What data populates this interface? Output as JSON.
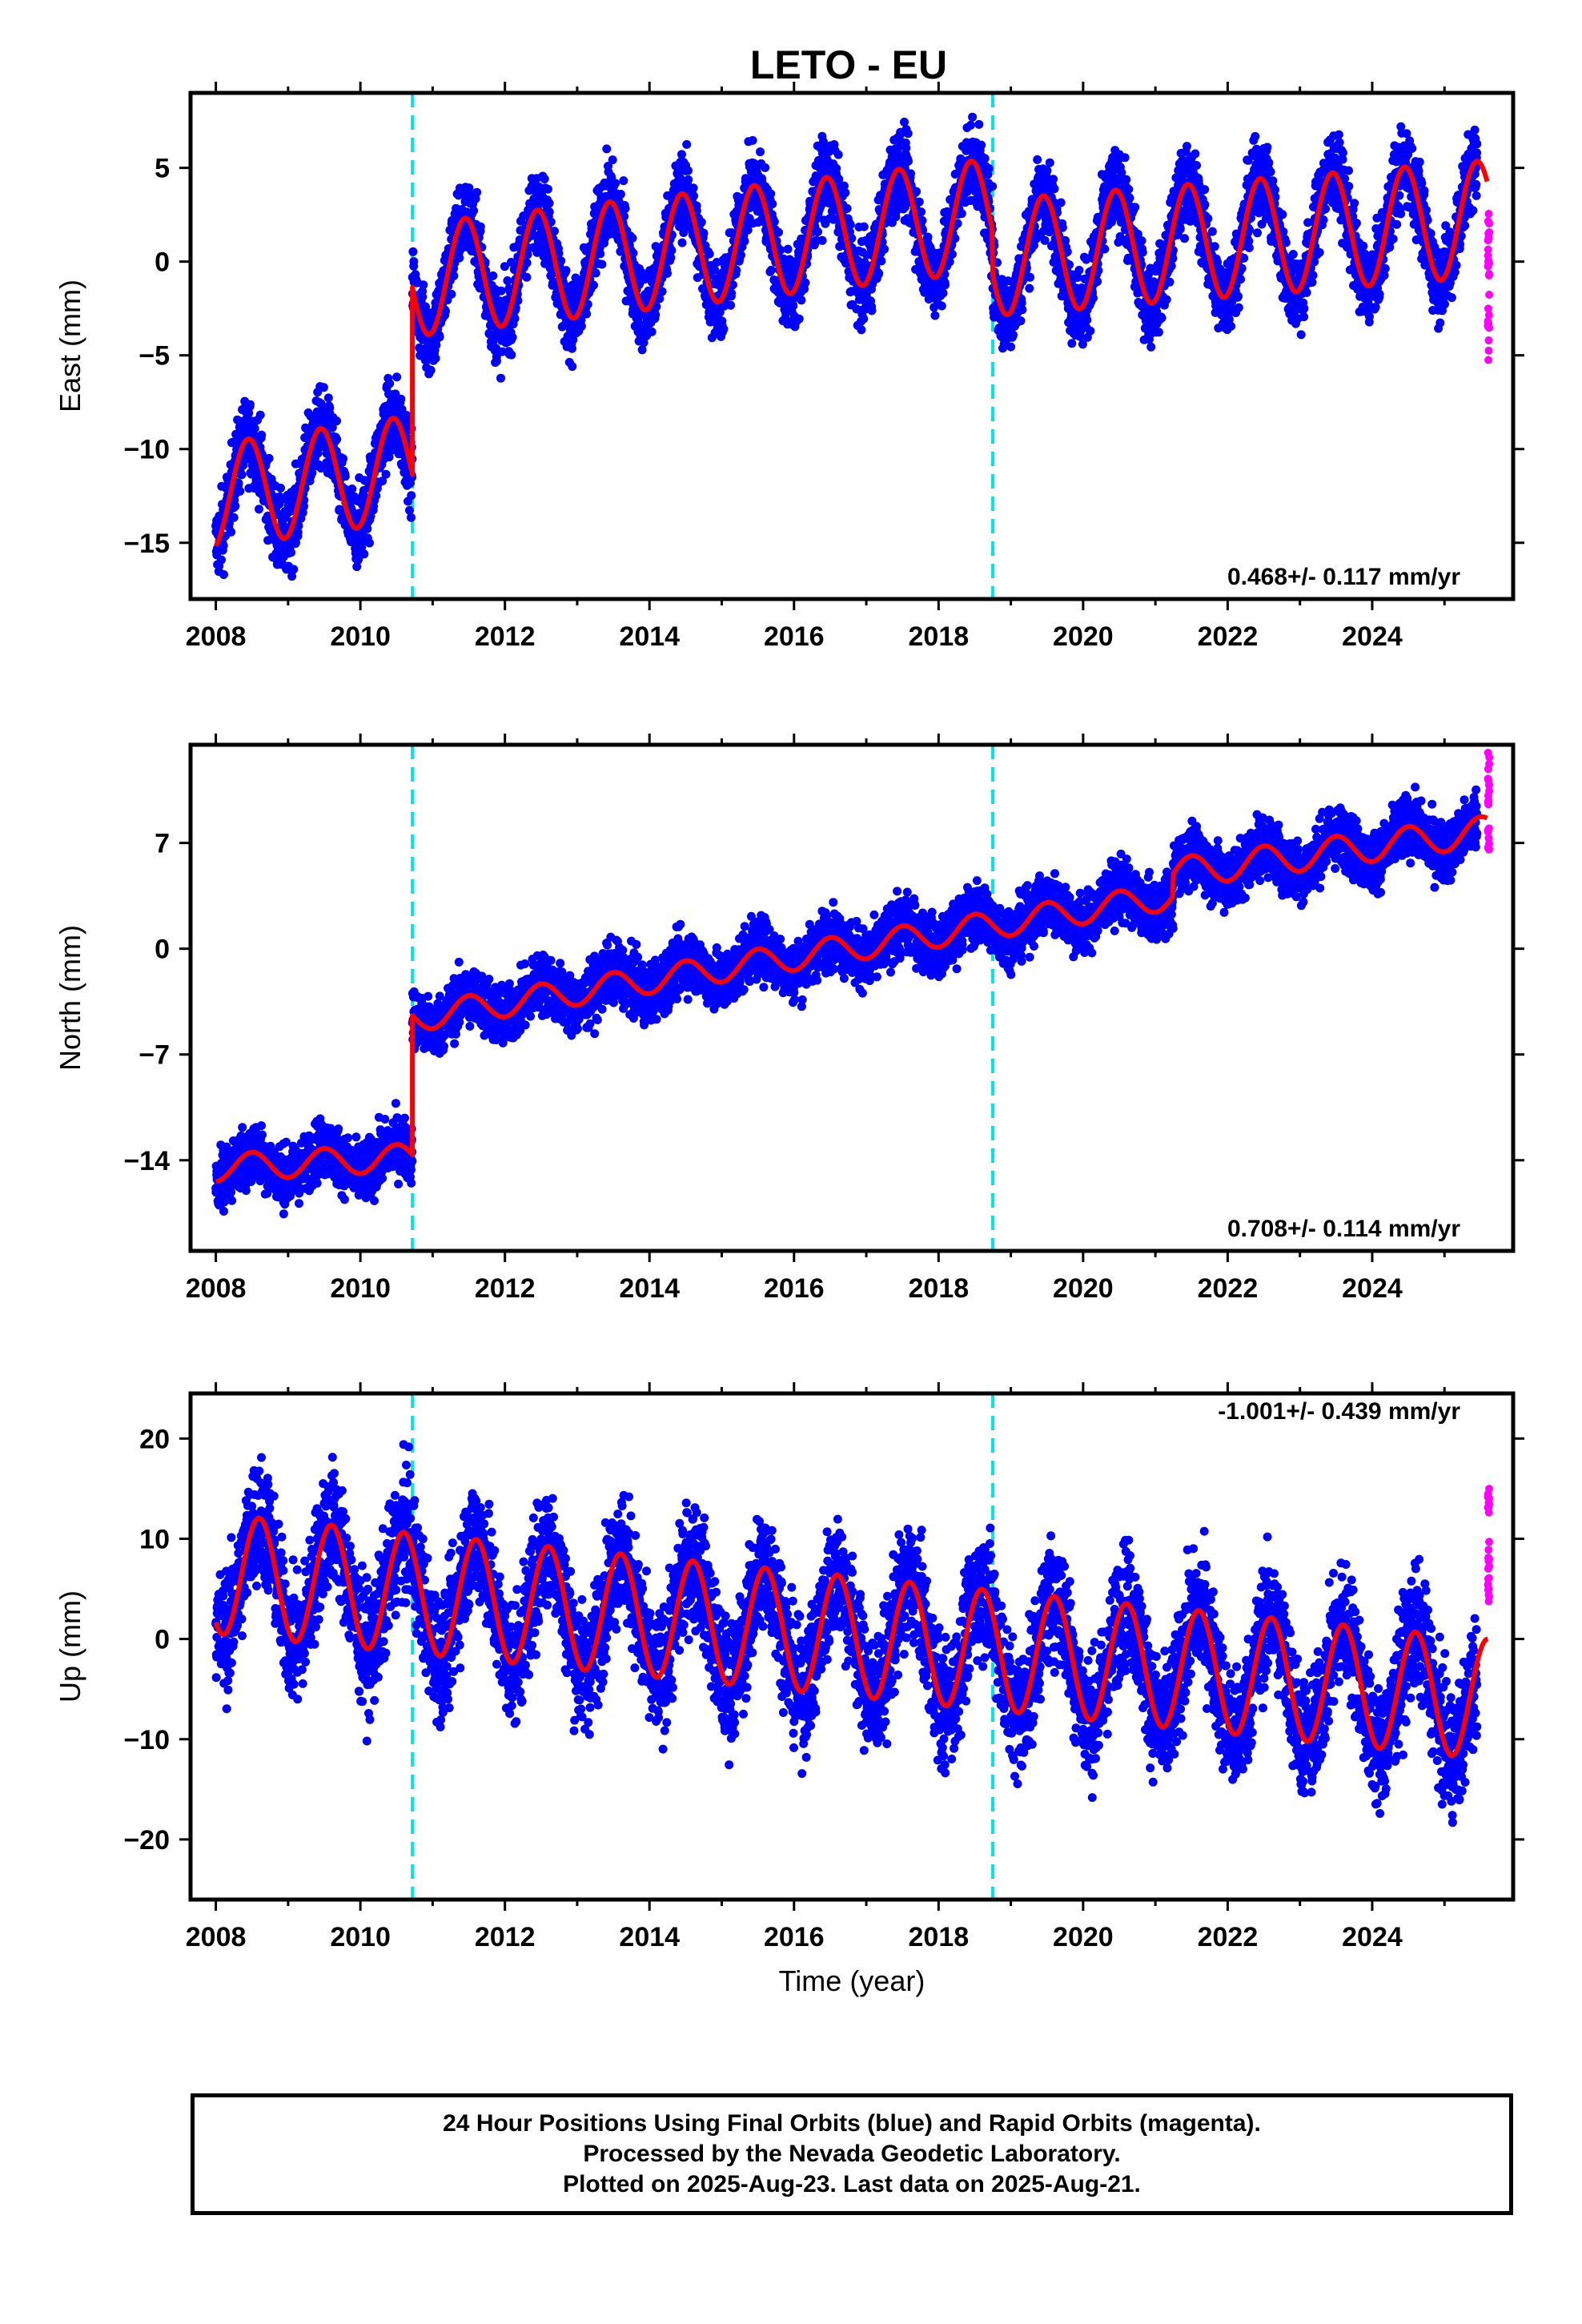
{
  "title": "LETO - EU",
  "colors": {
    "final": "#0000ff",
    "rapid": "#ff00ff",
    "model": "#ff0000",
    "offset_line": "#00e5e5"
  },
  "footer": {
    "line1": "24 Hour Positions Using Final Orbits (blue) and Rapid Orbits (magenta).",
    "line2": "Processed by the Nevada Geodetic Laboratory.",
    "line3": "Plotted on 2025-Aug-23. Last data on 2025-Aug-21."
  },
  "chart_data": [
    {
      "type": "scatter",
      "ylabel": "East (mm)",
      "xlabel": "",
      "rate_label": "0.468+/- 0.117 mm/yr",
      "xlim": [
        2007.65,
        2025.95
      ],
      "ylim": [
        -18,
        9
      ],
      "xticks": [
        2008,
        2010,
        2012,
        2014,
        2016,
        2018,
        2020,
        2022,
        2024
      ],
      "yticks": [
        5,
        0,
        -5,
        -10,
        -15
      ],
      "ytick_labels": [
        "5",
        "0",
        "−5",
        "−10",
        "−15"
      ],
      "offsets": [
        2010.72,
        2018.75
      ],
      "model": {
        "segments": [
          {
            "start": 2008.0,
            "end": 2010.72,
            "level_start": -12.5,
            "level_end": -11.0,
            "amplitude": 2.8,
            "peak_phase": 0.45
          },
          {
            "start": 2010.72,
            "end": 2018.75,
            "level_start": -1.0,
            "level_end": 2.5,
            "amplitude": 3.0,
            "peak_phase": 0.45
          },
          {
            "start": 2018.75,
            "end": 2025.6,
            "level_start": 0.2,
            "level_end": 2.3,
            "amplitude": 3.1,
            "peak_phase": 0.45
          }
        ]
      },
      "scatter_spread": 1.3,
      "rapid": {
        "start": 2025.45,
        "end": 2025.62,
        "ymin": -5.3,
        "ymax": 3.0
      }
    },
    {
      "type": "scatter",
      "ylabel": "North (mm)",
      "xlabel": "",
      "rate_label": "0.708+/- 0.114 mm/yr",
      "xlim": [
        2007.65,
        2025.95
      ],
      "ylim": [
        -20,
        13.5
      ],
      "xticks": [
        2008,
        2010,
        2012,
        2014,
        2016,
        2018,
        2020,
        2022,
        2024
      ],
      "yticks": [
        7,
        0,
        -7,
        -14
      ],
      "ytick_labels": [
        "7",
        "0",
        "−7",
        "−14"
      ],
      "offsets": [
        2010.72,
        2018.75
      ],
      "model": {
        "segments": [
          {
            "start": 2008.0,
            "end": 2010.72,
            "level_start": -14.5,
            "level_end": -13.8,
            "amplitude": 0.9,
            "peak_phase": 0.5
          },
          {
            "start": 2010.72,
            "end": 2021.25,
            "level_start": -4.6,
            "level_end": 3.5,
            "amplitude": 0.9,
            "peak_phase": 0.5
          },
          {
            "start": 2021.25,
            "end": 2025.6,
            "level_start": 5.0,
            "level_end": 7.8,
            "amplitude": 1.0,
            "peak_phase": 0.5
          }
        ]
      },
      "scatter_spread": 1.2,
      "rapid": {
        "start": 2025.45,
        "end": 2025.62,
        "ymin": 6.5,
        "ymax": 13.0
      }
    },
    {
      "type": "scatter",
      "ylabel": "Up (mm)",
      "xlabel": "Time (year)",
      "rate_label": "-1.001+/- 0.439 mm/yr",
      "xlim": [
        2007.65,
        2025.95
      ],
      "ylim": [
        -26,
        24.5
      ],
      "xticks": [
        2008,
        2010,
        2012,
        2014,
        2016,
        2018,
        2020,
        2022,
        2024
      ],
      "yticks": [
        20,
        10,
        0,
        -10,
        -20
      ],
      "ytick_labels": [
        "20",
        "10",
        "0",
        "−10",
        "−20"
      ],
      "offsets": [
        2010.72,
        2018.75
      ],
      "model": {
        "segments": [
          {
            "start": 2008.0,
            "end": 2025.6,
            "level_start": 6.5,
            "level_end": -6.0,
            "amplitude": 6.0,
            "peak_phase": 0.6
          }
        ]
      },
      "scatter_spread": 3.8,
      "rapid": {
        "start": 2025.45,
        "end": 2025.62,
        "ymin": 3.5,
        "ymax": 15.0
      }
    }
  ]
}
